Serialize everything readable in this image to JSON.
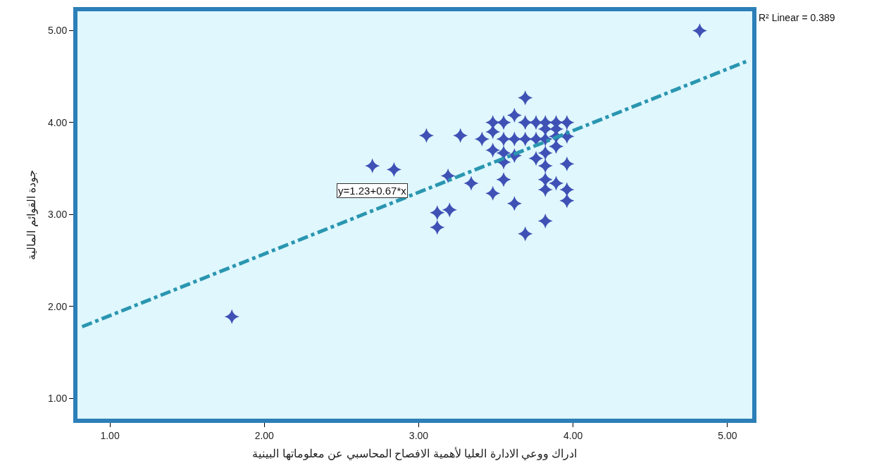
{
  "chart_data": {
    "type": "scatter",
    "xlabel": "ادراك ووعي الادارة العليا لأهمية الافصاح المحاسبي عن معلوماتها البينية",
    "ylabel": "جودة القوائم المالية",
    "series": [
      {
        "color": "#3f51b5",
        "marker": "star",
        "x": [
          4.82,
          1.79,
          2.7,
          2.84,
          3.05,
          3.27,
          3.19,
          3.12,
          3.2,
          3.12,
          3.34,
          3.41,
          3.48,
          3.48,
          3.48,
          3.48,
          3.55,
          3.62,
          3.69,
          3.55,
          3.55,
          3.55,
          3.55,
          3.62,
          3.69,
          3.62,
          3.62,
          3.69,
          3.76,
          3.69,
          3.76,
          3.76,
          3.82,
          3.82,
          3.82,
          3.82,
          3.82,
          3.82,
          3.82,
          3.89,
          3.89,
          3.89,
          3.89,
          3.96,
          3.96,
          3.96,
          3.96,
          3.96,
          3.82,
          3.89
        ],
        "values": [
          5.0,
          1.89,
          3.53,
          3.49,
          3.86,
          3.86,
          3.42,
          3.02,
          3.05,
          2.86,
          3.34,
          3.82,
          3.9,
          3.7,
          3.23,
          4.0,
          4.0,
          4.08,
          4.27,
          3.82,
          3.67,
          3.57,
          3.38,
          3.82,
          3.82,
          3.64,
          3.12,
          4.0,
          4.0,
          2.79,
          3.82,
          3.61,
          4.0,
          3.67,
          3.82,
          3.53,
          3.38,
          3.27,
          2.93,
          4.0,
          3.85,
          3.74,
          3.34,
          4.0,
          3.85,
          3.55,
          3.27,
          3.15,
          3.93,
          3.93
        ]
      },
      {
        "type": "line",
        "color": "#2a96b0",
        "marker": "none",
        "line_style": "dashed",
        "x": [
          0.82,
          5.13
        ],
        "values": [
          1.78,
          4.67
        ]
      }
    ],
    "xlim": [
      0.79,
      5.16
    ],
    "ylim": [
      0.78,
      5.21
    ],
    "xticks": [
      {
        "value": 1,
        "label": "1.00"
      },
      {
        "value": 2,
        "label": "2.00"
      },
      {
        "value": 3,
        "label": "3.00"
      },
      {
        "value": 4,
        "label": "4.00"
      },
      {
        "value": 5,
        "label": "5.00"
      }
    ],
    "yticks": [
      {
        "value": 1,
        "label": "1.00"
      },
      {
        "value": 2,
        "label": "2.00"
      },
      {
        "value": 3,
        "label": "3.00"
      },
      {
        "value": 4,
        "label": "4.00"
      },
      {
        "value": 5,
        "label": "5.00"
      }
    ],
    "annotations": [
      "y=1.23+0.67*x",
      "R² Linear = 0.389"
    ],
    "grid": false
  }
}
